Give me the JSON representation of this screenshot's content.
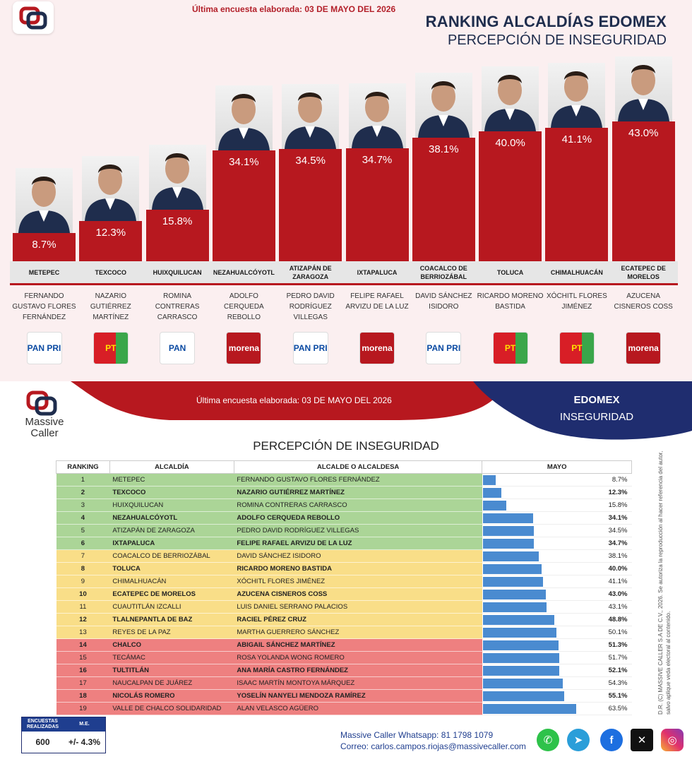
{
  "header": {
    "survey_date": "Última encuesta elaborada: 03 DE MAYO DEL 2026",
    "title": "RANKING ALCALDÍAS EDOMEX",
    "subtitle": "PERCEPCIÓN DE INSEGURIDAD"
  },
  "chart_data": [
    {
      "type": "bar",
      "categories": [
        "METEPEC",
        "TEXCOCO",
        "HUIXQUILUCAN",
        "NEZAHUALCÓYOTL",
        "ATIZAPÁN DE ZARAGOZA",
        "IXTAPALUCA",
        "COACALCO DE BERRIOZÁBAL",
        "TOLUCA",
        "CHIMALHUACÁN",
        "ECATEPEC DE MORELOS"
      ],
      "values": [
        8.7,
        12.3,
        15.8,
        34.1,
        34.5,
        34.7,
        38.1,
        40.0,
        41.1,
        43.0
      ],
      "value_labels": [
        "8.7%",
        "12.3%",
        "15.8%",
        "34.1%",
        "34.5%",
        "34.7%",
        "38.1%",
        "40.0%",
        "41.1%",
        "43.0%"
      ],
      "candidates": [
        "FERNANDO GUSTAVO FLORES FERNÁNDEZ",
        "NAZARIO GUTIÉRREZ MARTÍNEZ",
        "ROMINA CONTRERAS CARRASCO",
        "ADOLFO CERQUEDA REBOLLO",
        "PEDRO DAVID RODRÍGUEZ VILLEGAS",
        "FELIPE RAFAEL ARVIZU DE LA LUZ",
        "DAVID SÁNCHEZ ISIDORO",
        "RICARDO MORENO BASTIDA",
        "XÓCHITL FLORES JIMÉNEZ",
        "AZUCENA CISNEROS COSS"
      ],
      "parties": [
        "PAN-PRI-PRD",
        "PT-VERDE",
        "PAN",
        "morena",
        "PAN-PRI-PRD",
        "morena",
        "PAN-PRI-PRD",
        "PT-VERDE",
        "PT-VERDE",
        "morena"
      ],
      "color": "#b7181f"
    },
    {
      "type": "table",
      "title": "PERCEPCIÓN DE INSEGURIDAD",
      "columns": [
        "RANKING",
        "ALCALDÍA",
        "ALCALDE O ALCALDESA",
        "MAYO"
      ],
      "rows": [
        {
          "rank": "1",
          "alcaldia": "METEPEC",
          "alcalde": "FERNANDO GUSTAVO FLORES FERNÁNDEZ",
          "value": 8.7,
          "label": "8.7%",
          "band": "g",
          "bold": false
        },
        {
          "rank": "2",
          "alcaldia": "TEXCOCO",
          "alcalde": "NAZARIO GUTIÉRREZ MARTÍNEZ",
          "value": 12.3,
          "label": "12.3%",
          "band": "g",
          "bold": true
        },
        {
          "rank": "3",
          "alcaldia": "HUIXQUILUCAN",
          "alcalde": "ROMINA CONTRERAS CARRASCO",
          "value": 15.8,
          "label": "15.8%",
          "band": "g",
          "bold": false
        },
        {
          "rank": "4",
          "alcaldia": "NEZAHUALCÓYOTL",
          "alcalde": "ADOLFO CERQUEDA REBOLLO",
          "value": 34.1,
          "label": "34.1%",
          "band": "g",
          "bold": true
        },
        {
          "rank": "5",
          "alcaldia": "ATIZAPÁN DE ZARAGOZA",
          "alcalde": "PEDRO DAVID RODRÍGUEZ VILLEGAS",
          "value": 34.5,
          "label": "34.5%",
          "band": "g",
          "bold": false
        },
        {
          "rank": "6",
          "alcaldia": "IXTAPALUCA",
          "alcalde": "FELIPE RAFAEL ARVIZU DE LA LUZ",
          "value": 34.7,
          "label": "34.7%",
          "band": "g",
          "bold": true
        },
        {
          "rank": "7",
          "alcaldia": "COACALCO DE BERRIOZÁBAL",
          "alcalde": "DAVID SÁNCHEZ ISIDORO",
          "value": 38.1,
          "label": "38.1%",
          "band": "y",
          "bold": false
        },
        {
          "rank": "8",
          "alcaldia": "TOLUCA",
          "alcalde": "RICARDO MORENO BASTIDA",
          "value": 40.0,
          "label": "40.0%",
          "band": "y",
          "bold": true
        },
        {
          "rank": "9",
          "alcaldia": "CHIMALHUACÁN",
          "alcalde": "XÓCHITL FLORES JIMÉNEZ",
          "value": 41.1,
          "label": "41.1%",
          "band": "y",
          "bold": false
        },
        {
          "rank": "10",
          "alcaldia": "ECATEPEC DE MORELOS",
          "alcalde": "AZUCENA CISNEROS COSS",
          "value": 43.0,
          "label": "43.0%",
          "band": "y",
          "bold": true
        },
        {
          "rank": "11",
          "alcaldia": "CUAUTITLÁN IZCALLI",
          "alcalde": "LUIS DANIEL SERRANO PALACIOS",
          "value": 43.1,
          "label": "43.1%",
          "band": "y",
          "bold": false
        },
        {
          "rank": "12",
          "alcaldia": "TLALNEPANTLA DE BAZ",
          "alcalde": "RACIEL PÉREZ CRUZ",
          "value": 48.8,
          "label": "48.8%",
          "band": "y",
          "bold": true
        },
        {
          "rank": "13",
          "alcaldia": "REYES DE LA PAZ",
          "alcalde": "MARTHA GUERRERO SÁNCHEZ",
          "value": 50.1,
          "label": "50.1%",
          "band": "y",
          "bold": false
        },
        {
          "rank": "14",
          "alcaldia": "CHALCO",
          "alcalde": "ABIGAIL SÁNCHEZ MARTÍNEZ",
          "value": 51.3,
          "label": "51.3%",
          "band": "r",
          "bold": true
        },
        {
          "rank": "15",
          "alcaldia": "TECÁMAC",
          "alcalde": "ROSA YOLANDA WONG ROMERO",
          "value": 51.7,
          "label": "51.7%",
          "band": "r",
          "bold": false
        },
        {
          "rank": "16",
          "alcaldia": "TULTITLÁN",
          "alcalde": "ANA MARÍA CASTRO FERNÁNDEZ",
          "value": 52.1,
          "label": "52.1%",
          "band": "r",
          "bold": true
        },
        {
          "rank": "17",
          "alcaldia": "NAUCALPAN DE JUÁREZ",
          "alcalde": "ISAAC MARTÍN MONTOYA MÁRQUEZ",
          "value": 54.3,
          "label": "54.3%",
          "band": "r",
          "bold": false
        },
        {
          "rank": "18",
          "alcaldia": "NICOLÁS ROMERO",
          "alcalde": "YOSELÍN NANYELI MENDOZA RAMÍREZ",
          "value": 55.1,
          "label": "55.1%",
          "band": "r",
          "bold": true
        },
        {
          "rank": "19",
          "alcaldia": "VALLE DE CHALCO SOLIDARIDAD",
          "alcalde": "ALAN VELASCO AGÜERO",
          "value": 63.5,
          "label": "63.5%",
          "band": "r",
          "bold": false
        }
      ],
      "bar_color": "#4a8bd0"
    }
  ],
  "bottom": {
    "brand": "Massive Caller",
    "survey_date": "Última encuesta elaborada: 03 DE MAYO DEL 2026",
    "region": "EDOMEX",
    "topic": "INSEGURIDAD",
    "table_title": "PERCEPCIÓN DE INSEGURIDAD",
    "encuestas_label": "ENCUESTAS REALIZADAS",
    "me_label": "M.E.",
    "encuestas_value": "600",
    "me_value": "+/- 4.3%",
    "whatsapp": "Massive Caller Whatsapp: 81 1798 1079",
    "email": "Correo: carlos.campos.riojas@massivecaller.com",
    "legal": "D.R. (C) MASSIVE CALLER S.A DE C.V., 2026. Se autoriza la reproducción al hacer referencia del autor, salvo aplique veda electoral al contenido."
  },
  "icons": [
    "whatsapp-icon",
    "telegram-icon",
    "facebook-icon",
    "x-icon",
    "instagram-icon"
  ]
}
